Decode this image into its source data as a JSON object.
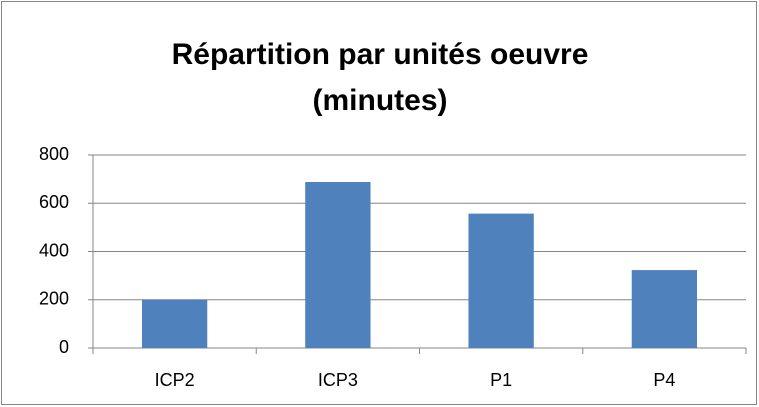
{
  "chart_data": {
    "type": "bar",
    "title": "Répartition par unités oeuvre (minutes)",
    "categories": [
      "ICP2",
      "ICP3",
      "P1",
      "P4"
    ],
    "values": [
      200,
      688,
      557,
      323
    ],
    "color": "#4f81bd",
    "ylim": [
      0,
      800
    ],
    "yticks": [
      0,
      200,
      400,
      600,
      800
    ],
    "grid": true
  }
}
